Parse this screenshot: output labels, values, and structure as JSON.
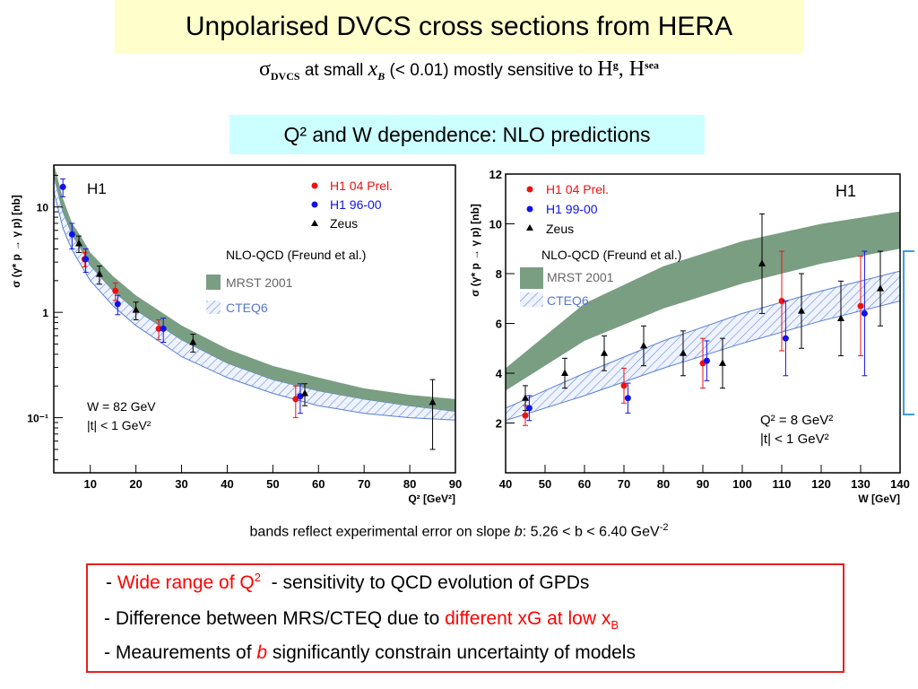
{
  "title": "Unpolarised DVCS cross sections from HERA",
  "subtitle": {
    "sigma": "σ",
    "sigma_sub": "DVCS",
    "part1": " at small ",
    "xvar": "x",
    "xsub": "B",
    "part2": " (< 0.01) mostly sensitive to ",
    "h1": "H",
    "h1sup": "g",
    "comma": ", H",
    "h2sup": "sea"
  },
  "section_title": "Q² and W dependence: NLO predictions",
  "colors": {
    "band": "#7a9e82",
    "hatch": "#5a7fd0",
    "h1_new": "#ee1111",
    "h1_old": "#1111ee",
    "zeus": "#000000",
    "bracket": "#3d9be9"
  },
  "chart_data": [
    {
      "type": "scatter",
      "x_axis_label": "Q² [GeV²]",
      "y_axis_label": "σ (γ* p → γ p) [nb]",
      "y_scale": "log",
      "xlim": [
        2,
        90
      ],
      "ylim": [
        0.03,
        25
      ],
      "x_ticks": [
        "10",
        "20",
        "30",
        "40",
        "50",
        "60",
        "70",
        "80",
        "90"
      ],
      "y_ticks": [
        "10",
        "1",
        "10⁻¹"
      ],
      "experiment_label": "H1",
      "legend": {
        "h1_new": "H1 04 Prel.",
        "h1_old": "H1 96-00",
        "zeus": "Zeus",
        "theory_title": "NLO-QCD (Freund et al.)",
        "band1": "MRST 2001",
        "band2": "CTEQ6"
      },
      "legend_position": "top-right",
      "kin_text1": "W = 82 GeV",
      "kin_text2": "|t| < 1 GeV²",
      "series": [
        {
          "name": "H1 04 Prel.",
          "x": [
            8.75,
            15.5,
            25,
            55
          ],
          "y": [
            3.2,
            1.6,
            0.7,
            0.15
          ],
          "err": [
            0.5,
            0.3,
            0.15,
            0.05
          ]
        },
        {
          "name": "H1 96-00",
          "x": [
            4,
            6,
            9,
            16,
            26,
            56
          ],
          "y": [
            15.5,
            5.5,
            3.2,
            1.2,
            0.7,
            0.16
          ],
          "err": [
            3,
            1.5,
            0.8,
            0.25,
            0.18,
            0.05
          ]
        },
        {
          "name": "Zeus",
          "x": [
            7.5,
            12,
            20,
            32.5,
            57,
            85
          ],
          "y": [
            4.5,
            2.3,
            1.05,
            0.52,
            0.17,
            0.14
          ],
          "err": [
            0.8,
            0.45,
            0.2,
            0.1,
            0.04,
            0.09
          ]
        }
      ],
      "band_mrst": {
        "x": [
          2,
          4,
          6,
          8,
          10,
          15,
          20,
          30,
          40,
          50,
          60,
          70,
          80,
          90
        ],
        "lo": [
          20,
          9,
          5.5,
          4,
          2.8,
          1.6,
          1.05,
          0.55,
          0.33,
          0.23,
          0.18,
          0.15,
          0.13,
          0.115
        ],
        "hi": [
          26,
          12,
          7,
          5.2,
          3.7,
          2.2,
          1.45,
          0.75,
          0.45,
          0.31,
          0.24,
          0.19,
          0.165,
          0.15
        ]
      },
      "band_cteq": {
        "x": [
          2,
          4,
          6,
          8,
          10,
          15,
          20,
          30,
          40,
          50,
          60,
          70,
          80,
          90
        ],
        "lo": [
          14,
          6.3,
          3.9,
          2.8,
          2.0,
          1.15,
          0.75,
          0.38,
          0.24,
          0.17,
          0.13,
          0.11,
          0.1,
          0.095
        ],
        "hi": [
          20,
          9,
          5.5,
          4,
          2.8,
          1.6,
          1.05,
          0.55,
          0.33,
          0.23,
          0.18,
          0.15,
          0.13,
          0.115
        ]
      }
    },
    {
      "type": "scatter",
      "x_axis_label": "W [GeV]",
      "y_axis_label": "σ (γ* p → γ p) [nb]",
      "y_scale": "linear",
      "xlim": [
        40,
        140
      ],
      "ylim": [
        0,
        12
      ],
      "x_ticks": [
        "40",
        "50",
        "60",
        "70",
        "80",
        "90",
        "100",
        "110",
        "120",
        "130",
        "140"
      ],
      "y_ticks": [
        "2",
        "4",
        "6",
        "8",
        "10",
        "12"
      ],
      "experiment_label": "H1",
      "legend": {
        "h1_new": "H1 04 Prel.",
        "h1_old": "H1 99-00",
        "zeus": "Zeus",
        "theory_title": "NLO-QCD (Freund et al.)",
        "band1": "MRST 2001",
        "band2": "CTEQ6"
      },
      "legend_position": "top-left",
      "kin_text1": "Q² = 8 GeV²",
      "kin_text2": "|t| < 1 GeV²",
      "series": [
        {
          "name": "H1 04 Prel.",
          "x": [
            45,
            70,
            90,
            110,
            130
          ],
          "y": [
            2.3,
            3.5,
            4.4,
            6.9,
            6.7
          ],
          "err": [
            0.4,
            0.7,
            1.0,
            2.0,
            2.0
          ]
        },
        {
          "name": "H1 99-00",
          "x": [
            46,
            71,
            91,
            111,
            131
          ],
          "y": [
            2.6,
            3.0,
            4.5,
            5.4,
            6.4
          ],
          "err": [
            0.5,
            0.6,
            0.8,
            1.5,
            2.5
          ]
        },
        {
          "name": "Zeus",
          "x": [
            45,
            55,
            65,
            75,
            85,
            95,
            105,
            115,
            125,
            135
          ],
          "y": [
            3.0,
            4.0,
            4.8,
            5.1,
            4.8,
            4.4,
            8.4,
            6.5,
            6.2,
            7.4
          ],
          "err": [
            0.5,
            0.6,
            0.7,
            0.8,
            0.9,
            1.0,
            2.0,
            1.5,
            1.5,
            1.5
          ]
        }
      ],
      "band_mrst": {
        "x": [
          40,
          60,
          80,
          100,
          120,
          140
        ],
        "lo": [
          3.3,
          5.3,
          6.6,
          7.6,
          8.4,
          9.0
        ],
        "hi": [
          4.2,
          6.8,
          8.3,
          9.3,
          10.0,
          10.5
        ]
      },
      "band_cteq": {
        "x": [
          40,
          60,
          80,
          100,
          120,
          140
        ],
        "lo": [
          2.1,
          3.1,
          4.2,
          5.2,
          6.1,
          6.9
        ],
        "hi": [
          2.6,
          4.0,
          5.3,
          6.4,
          7.3,
          8.1
        ]
      }
    }
  ],
  "footnote": {
    "text1": "bands reflect experimental error on slope ",
    "b": "b",
    "text2": ": 5.26 < b < 6.40 GeV",
    "sup": "-2"
  },
  "conclusions": {
    "l1_dash": "- ",
    "l1_red": "Wide range of Q",
    "l1_sup": "2",
    "l1_rest": "  - sensitivity to QCD evolution of GPDs",
    "l2_text": "- Difference between MRS/CTEQ due to ",
    "l2_red": "different xG at low x",
    "l2_sub": "B",
    "l3_text1": "- Meaurements of ",
    "l3_b": "b",
    "l3_text2": " significantly constrain uncertainty of models"
  }
}
